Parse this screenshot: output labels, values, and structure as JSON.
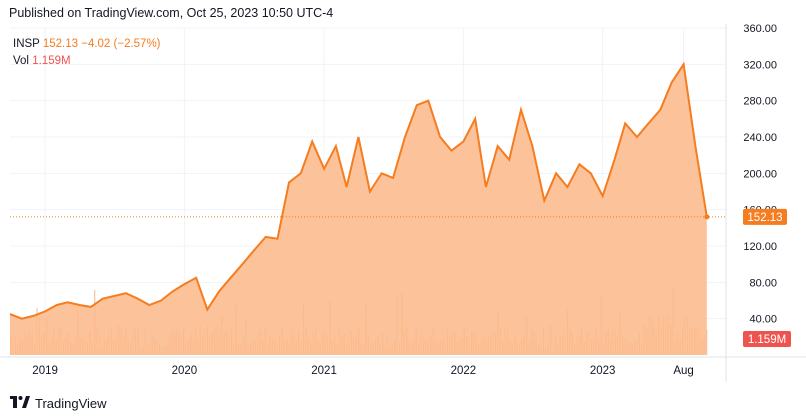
{
  "header": {
    "published": "Published on TradingView.com, Oct 25, 2023 10:50 UTC-4"
  },
  "legend": {
    "symbol": "INSP",
    "price": "152.13",
    "change": "−4.02 (−2.57%)",
    "vol_label": "Vol",
    "vol_value": "1.159M"
  },
  "footer": {
    "brand": "TradingView",
    "logo_icon": "tradingview-logo-icon"
  },
  "colors": {
    "line": "#f57c1f",
    "fill": "#fbb98a",
    "volume": "#f3b58a",
    "price_badge": "#f57c1f",
    "volume_badge": "#ef5350"
  },
  "chart_data": {
    "type": "area",
    "symbol": "INSP",
    "title": "",
    "xlabel": "",
    "ylabel": "",
    "x_ticks": [
      "2019",
      "2020",
      "2021",
      "2022",
      "2023",
      "Aug"
    ],
    "y_ticks": [
      "40.00",
      "80.00",
      "120.00",
      "160.00",
      "200.00",
      "240.00",
      "280.00",
      "320.00",
      "360.00"
    ],
    "ylim": [
      0,
      360
    ],
    "last_price": 152.13,
    "last_price_label": "152.13",
    "volume_label": "1.159M",
    "grid": true,
    "series": [
      {
        "x": [
          "2018-10",
          "2018-11",
          "2018-12",
          "2019-01",
          "2019-02",
          "2019-03",
          "2019-04",
          "2019-05",
          "2019-06",
          "2019-07",
          "2019-08",
          "2019-09",
          "2019-10",
          "2019-11",
          "2019-12",
          "2020-01",
          "2020-02",
          "2020-03",
          "2020-04",
          "2020-05",
          "2020-06",
          "2020-07",
          "2020-08",
          "2020-09",
          "2020-10",
          "2020-11",
          "2020-12",
          "2021-01",
          "2021-02",
          "2021-03",
          "2021-04",
          "2021-05",
          "2021-06",
          "2021-07",
          "2021-08",
          "2021-09",
          "2021-10",
          "2021-11",
          "2021-12",
          "2022-01",
          "2022-02",
          "2022-03",
          "2022-04",
          "2022-05",
          "2022-06",
          "2022-07",
          "2022-08",
          "2022-09",
          "2022-10",
          "2022-11",
          "2022-12",
          "2023-01",
          "2023-02",
          "2023-03",
          "2023-04",
          "2023-05",
          "2023-06",
          "2023-07",
          "2023-08",
          "2023-09",
          "2023-10"
        ],
        "values": [
          45,
          40,
          43,
          48,
          55,
          58,
          55,
          53,
          62,
          65,
          68,
          62,
          55,
          60,
          70,
          78,
          85,
          50,
          70,
          85,
          100,
          115,
          130,
          128,
          190,
          200,
          235,
          205,
          230,
          185,
          240,
          180,
          200,
          195,
          240,
          275,
          280,
          240,
          225,
          235,
          260,
          185,
          230,
          215,
          270,
          230,
          170,
          200,
          185,
          210,
          200,
          175,
          215,
          255,
          240,
          255,
          270,
          300,
          320,
          230,
          152
        ]
      }
    ]
  }
}
